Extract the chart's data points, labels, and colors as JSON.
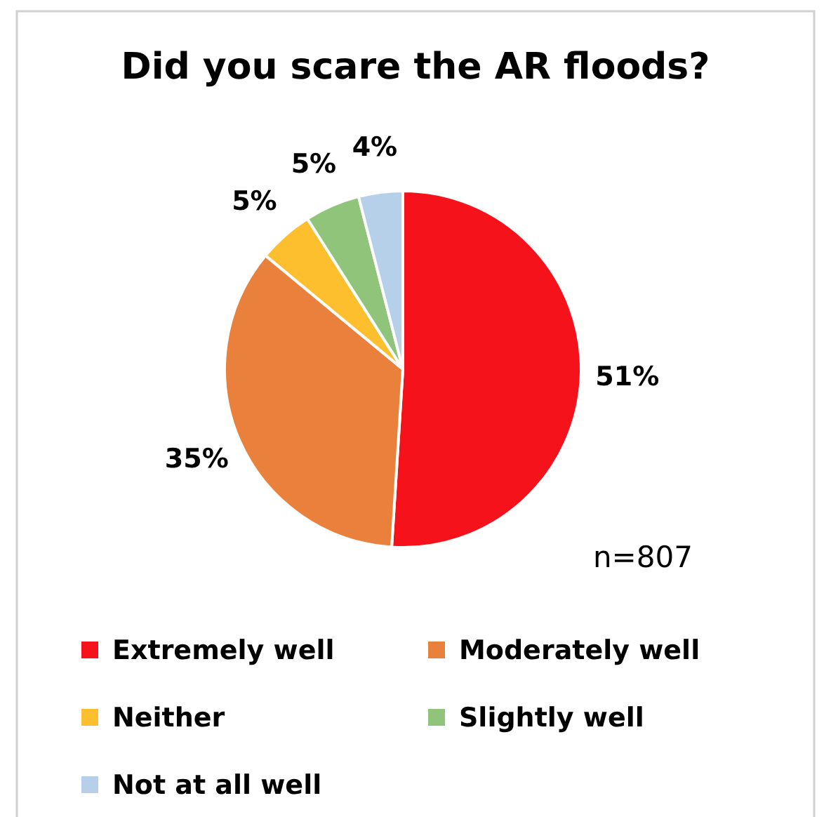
{
  "chart_data": {
    "type": "pie",
    "title": "Did you scare the AR floods?",
    "categories": [
      "Extremely well",
      "Moderately well",
      "Neither",
      "Slightly well",
      "Not at all well"
    ],
    "values": [
      51,
      35,
      5,
      5,
      4
    ],
    "colors": [
      "#f5121b",
      "#e9813d",
      "#fdbf2d",
      "#8fc47a",
      "#b7d0ea"
    ],
    "value_labels": [
      "51%",
      "35%",
      "5%",
      "5%",
      "4%"
    ],
    "annotations": [
      "n=807"
    ],
    "legend": "bottom"
  }
}
